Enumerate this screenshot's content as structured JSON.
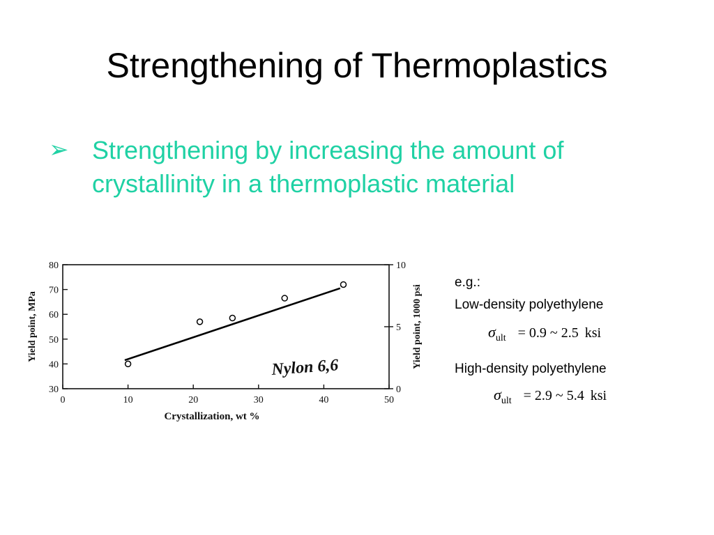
{
  "slide": {
    "title": "Strengthening of Thermoplastics",
    "bullet_icon": "arrow-bullet-icon",
    "bullet_text": "Strengthening by increasing the amount of crystallinity in a thermoplastic material"
  },
  "examples": {
    "eg_label": "e.g.:",
    "items": [
      {
        "name": "Low-density polyethylene",
        "symbol": "σ",
        "subscript": "ult",
        "relation": "=",
        "low": "0.9",
        "range_sep": "~",
        "high": "2.5",
        "unit": "ksi"
      },
      {
        "name": "High-density polyethylene",
        "symbol": "σ",
        "subscript": "ult",
        "relation": "=",
        "low": "2.9",
        "range_sep": "~",
        "high": "5.4",
        "unit": "ksi"
      }
    ]
  },
  "chart_data": {
    "type": "scatter",
    "xlabel": "Crystallization, wt %",
    "ylabel": "Yield point, MPa",
    "y2label": "Yield point, 1000 psi",
    "annotation": "Nylon 6,6",
    "xlim": [
      0,
      50
    ],
    "ylim": [
      30,
      80
    ],
    "y2lim": [
      0,
      10
    ],
    "x_ticks": [
      "0",
      "10",
      "20",
      "30",
      "40",
      "50"
    ],
    "y_ticks": [
      "30",
      "40",
      "50",
      "60",
      "70",
      "80"
    ],
    "y2_ticks": [
      "0",
      "5",
      "10"
    ],
    "points": [
      {
        "x": 10,
        "y": 40
      },
      {
        "x": 21,
        "y": 57
      },
      {
        "x": 26,
        "y": 58.5
      },
      {
        "x": 34,
        "y": 66.5
      },
      {
        "x": 43,
        "y": 72
      }
    ],
    "trend_line": {
      "x": [
        9.5,
        42.5
      ],
      "y": [
        41.5,
        70.5
      ]
    },
    "grid": false
  }
}
